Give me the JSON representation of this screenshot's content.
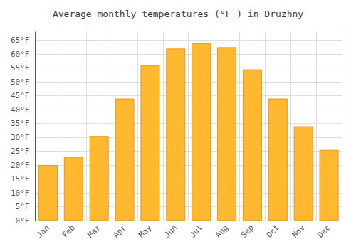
{
  "chart_data": {
    "type": "bar",
    "title": "Average monthly temperatures (°F ) in Druzhny",
    "categories": [
      "Jan",
      "Feb",
      "Mar",
      "Apr",
      "May",
      "Jun",
      "Jul",
      "Aug",
      "Sep",
      "Oct",
      "Nov",
      "Dec"
    ],
    "values": [
      20,
      23,
      30.5,
      44,
      56,
      62,
      64,
      62.5,
      54.5,
      44,
      34,
      25.5
    ],
    "color": "#FFB830",
    "ylim": [
      0,
      68
    ],
    "yticks": [
      {
        "value": 0,
        "label": "0°F"
      },
      {
        "value": 5,
        "label": "5°F"
      },
      {
        "value": 10,
        "label": "10°F"
      },
      {
        "value": 15,
        "label": "15°F"
      },
      {
        "value": 20,
        "label": "20°F"
      },
      {
        "value": 25,
        "label": "25°F"
      },
      {
        "value": 30,
        "label": "30°F"
      },
      {
        "value": 35,
        "label": "35°F"
      },
      {
        "value": 40,
        "label": "40°F"
      },
      {
        "value": 45,
        "label": "45°F"
      },
      {
        "value": 50,
        "label": "50°F"
      },
      {
        "value": 55,
        "label": "55°F"
      },
      {
        "value": 60,
        "label": "60°F"
      },
      {
        "value": 65,
        "label": "65°F"
      }
    ],
    "grid": true
  }
}
